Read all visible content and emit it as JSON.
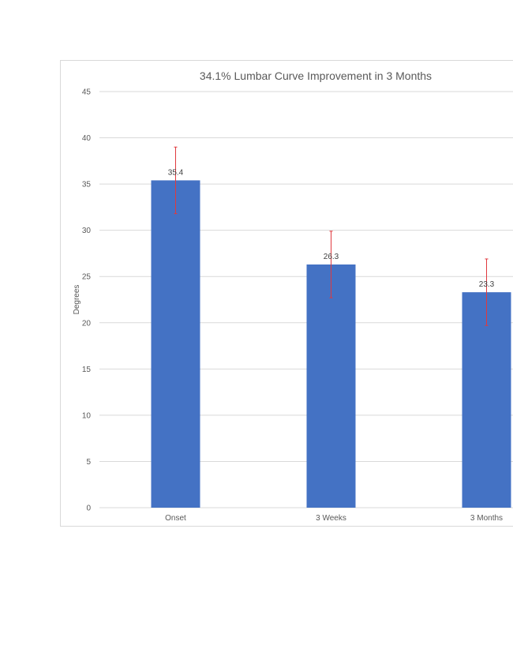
{
  "chart_data": {
    "type": "bar",
    "title": "34.1% Lumbar Curve Improvement in 3 Months",
    "xlabel": "",
    "ylabel": "Degrees",
    "categories": [
      "Onset",
      "3 Weeks",
      "3 Months"
    ],
    "values": [
      35.4,
      26.3,
      23.3
    ],
    "error_bars": [
      3.6,
      3.6,
      3.6
    ],
    "data_labels": [
      "35.4",
      "26.3",
      "23.3"
    ],
    "ylim": [
      0,
      45
    ],
    "yticks": [
      0,
      5,
      10,
      15,
      20,
      25,
      30,
      35,
      40,
      45
    ],
    "ytick_labels": [
      "0",
      "5",
      "10",
      "15",
      "20",
      "25",
      "30",
      "35",
      "40",
      "45"
    ],
    "grid": true,
    "legend": "none",
    "colors": {
      "bar": "#4472c4",
      "error_bar": "#e0393e",
      "grid": "#d9d9d9",
      "text": "#595959"
    }
  }
}
